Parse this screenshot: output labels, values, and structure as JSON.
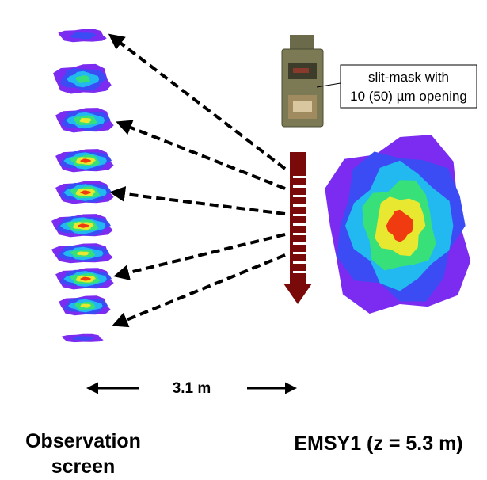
{
  "mask_label": {
    "line1": "slit-mask with",
    "line2": "10 (50) µm opening"
  },
  "distance_label": "3.1 m",
  "left_caption": {
    "line1": "Observation",
    "line2": "screen"
  },
  "right_caption": "EMSY1 (z = 5.3 m)"
}
